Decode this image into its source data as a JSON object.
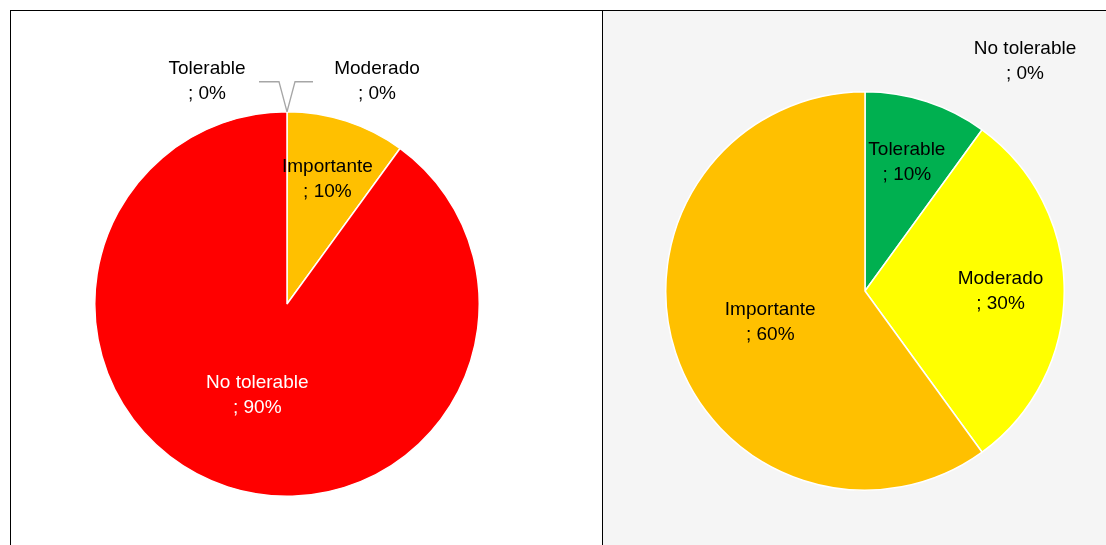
{
  "chart_data": [
    {
      "type": "pie",
      "categories": [
        "Tolerable",
        "Moderado",
        "Importante",
        "No tolerable"
      ],
      "values": [
        0,
        0,
        10,
        90
      ],
      "colors": [
        "#00b050",
        "#ffff00",
        "#ffc000",
        "#ff0000"
      ],
      "value_labels": [
        "; 0%",
        "; 0%",
        "; 10%",
        "; 90%"
      ],
      "legend": false
    },
    {
      "type": "pie",
      "categories": [
        "Tolerable",
        "Moderado",
        "Importante",
        "No tolerable"
      ],
      "values": [
        10,
        30,
        60,
        0
      ],
      "colors": [
        "#00b050",
        "#ffff00",
        "#ffc000",
        "#ff0000"
      ],
      "value_labels": [
        "; 10%",
        "; 30%",
        "; 60%",
        "; 0%"
      ],
      "legend": false
    }
  ]
}
